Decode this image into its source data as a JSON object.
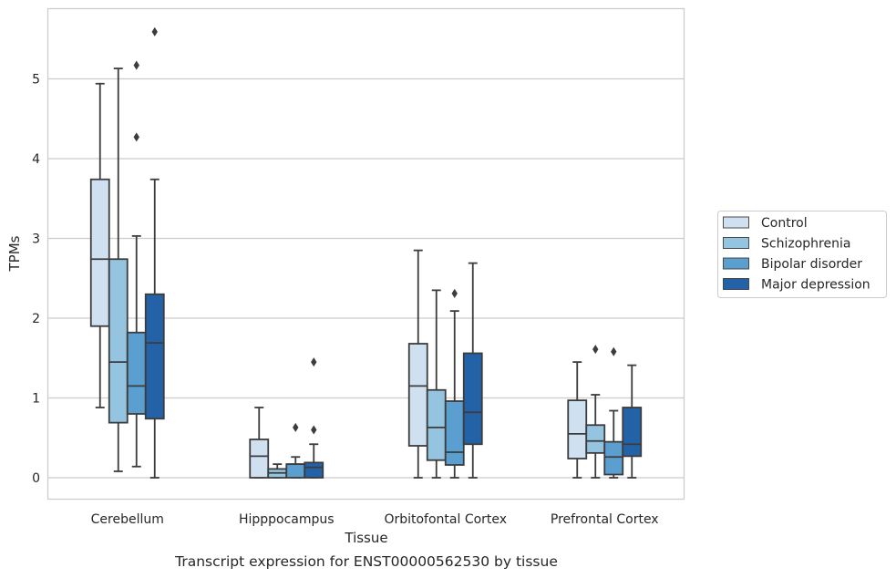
{
  "chart_data": {
    "type": "box",
    "title": "",
    "caption": "Transcript expression for ENST00000562530 by tissue",
    "xlabel": "Tissue",
    "ylabel": "TPMs",
    "ylim": [
      -0.27,
      5.88
    ],
    "yticks": [
      "0",
      "1",
      "2",
      "3",
      "4",
      "5"
    ],
    "grid": "horizontal",
    "legend_position": "right",
    "categories": [
      "Cerebellum",
      "Hipppocampus",
      "Orbitofontal Cortex",
      "Prefrontal Cortex"
    ],
    "series": [
      {
        "name": "Control",
        "color": "#cfe0f1",
        "boxes": [
          {
            "whislo": 0.88,
            "q1": 1.9,
            "med": 2.74,
            "q3": 3.74,
            "whishi": 4.94,
            "fliers": []
          },
          {
            "whislo": 0.0,
            "q1": 0.0,
            "med": 0.27,
            "q3": 0.48,
            "whishi": 0.88,
            "fliers": []
          },
          {
            "whislo": 0.0,
            "q1": 0.4,
            "med": 1.15,
            "q3": 1.68,
            "whishi": 2.85,
            "fliers": []
          },
          {
            "whislo": 0.0,
            "q1": 0.24,
            "med": 0.55,
            "q3": 0.97,
            "whishi": 1.45,
            "fliers": []
          }
        ]
      },
      {
        "name": "Schizophrenia",
        "color": "#94c4df",
        "boxes": [
          {
            "whislo": 0.08,
            "q1": 0.69,
            "med": 1.45,
            "q3": 2.74,
            "whishi": 5.13,
            "fliers": []
          },
          {
            "whislo": 0.0,
            "q1": 0.0,
            "med": 0.06,
            "q3": 0.11,
            "whishi": 0.17,
            "fliers": []
          },
          {
            "whislo": 0.0,
            "q1": 0.22,
            "med": 0.63,
            "q3": 1.1,
            "whishi": 2.35,
            "fliers": []
          },
          {
            "whislo": 0.0,
            "q1": 0.31,
            "med": 0.46,
            "q3": 0.66,
            "whishi": 1.04,
            "fliers": [
              1.61
            ]
          }
        ]
      },
      {
        "name": "Bipolar disorder",
        "color": "#5a9fcf",
        "boxes": [
          {
            "whislo": 0.14,
            "q1": 0.8,
            "med": 1.15,
            "q3": 1.82,
            "whishi": 3.03,
            "fliers": [
              4.27,
              5.17
            ]
          },
          {
            "whislo": 0.0,
            "q1": 0.0,
            "med": 0.17,
            "q3": 0.17,
            "whishi": 0.26,
            "fliers": [
              0.63
            ]
          },
          {
            "whislo": 0.0,
            "q1": 0.16,
            "med": 0.32,
            "q3": 0.96,
            "whishi": 2.09,
            "fliers": [
              2.31
            ]
          },
          {
            "whislo": 0.0,
            "q1": 0.04,
            "med": 0.26,
            "q3": 0.45,
            "whishi": 0.84,
            "fliers": [
              1.58
            ]
          }
        ]
      },
      {
        "name": "Major depression",
        "color": "#2462a7",
        "boxes": [
          {
            "whislo": 0.0,
            "q1": 0.74,
            "med": 1.69,
            "q3": 2.3,
            "whishi": 3.74,
            "fliers": [
              5.59
            ]
          },
          {
            "whislo": 0.0,
            "q1": 0.0,
            "med": 0.13,
            "q3": 0.19,
            "whishi": 0.42,
            "fliers": [
              0.6,
              1.45
            ]
          },
          {
            "whislo": 0.0,
            "q1": 0.42,
            "med": 0.82,
            "q3": 1.56,
            "whishi": 2.69,
            "fliers": []
          },
          {
            "whislo": 0.0,
            "q1": 0.27,
            "med": 0.42,
            "q3": 0.88,
            "whishi": 1.41,
            "fliers": []
          }
        ]
      }
    ]
  }
}
